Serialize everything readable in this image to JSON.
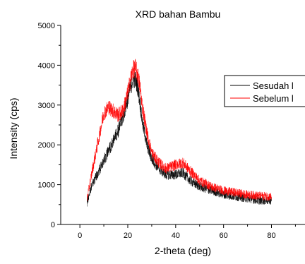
{
  "chart_data": {
    "type": "line",
    "title": "XRD bahan Bambu",
    "xlabel": "2-theta (deg)",
    "ylabel": "Intensity (cps)",
    "xlim": [
      -8,
      94
    ],
    "ylim": [
      0,
      5000
    ],
    "x_ticks": [
      0,
      20,
      40,
      60,
      80
    ],
    "x_tick_labels": [
      "0",
      "20",
      "40",
      "60",
      "80"
    ],
    "y_ticks": [
      0,
      1000,
      2000,
      3000,
      4000,
      5000
    ],
    "y_tick_labels": [
      "0",
      "1000",
      "2000",
      "3000",
      "4000",
      "5000"
    ],
    "grid": false,
    "legend_position": "right",
    "series": [
      {
        "name": "Sesudah l",
        "color": "#000000",
        "noise": 220,
        "x": [
          3,
          5,
          8,
          10,
          12,
          14,
          16,
          18,
          20,
          21,
          22,
          23,
          24,
          25,
          26,
          28,
          30,
          33,
          36,
          40,
          43,
          46,
          50,
          55,
          60,
          65,
          70,
          75,
          80
        ],
        "y": [
          550,
          1000,
          1350,
          1600,
          1850,
          2100,
          2350,
          2700,
          3150,
          3400,
          3600,
          3650,
          3500,
          3100,
          2600,
          2000,
          1650,
          1400,
          1250,
          1250,
          1300,
          1100,
          950,
          850,
          750,
          700,
          650,
          600,
          600
        ]
      },
      {
        "name": "Sebelum l",
        "color": "#ff0000",
        "noise": 220,
        "x": [
          3,
          5,
          7,
          9,
          10,
          12,
          14,
          16,
          18,
          20,
          21,
          22,
          23,
          24,
          25,
          26,
          28,
          30,
          33,
          36,
          40,
          43,
          46,
          50,
          55,
          60,
          65,
          70,
          75,
          80
        ],
        "y": [
          650,
          1300,
          1900,
          2500,
          2800,
          2950,
          2850,
          2750,
          2850,
          3300,
          3600,
          3850,
          3950,
          3800,
          3500,
          3000,
          2300,
          1800,
          1550,
          1400,
          1500,
          1550,
          1350,
          1100,
          950,
          850,
          800,
          750,
          720,
          700
        ]
      }
    ]
  }
}
